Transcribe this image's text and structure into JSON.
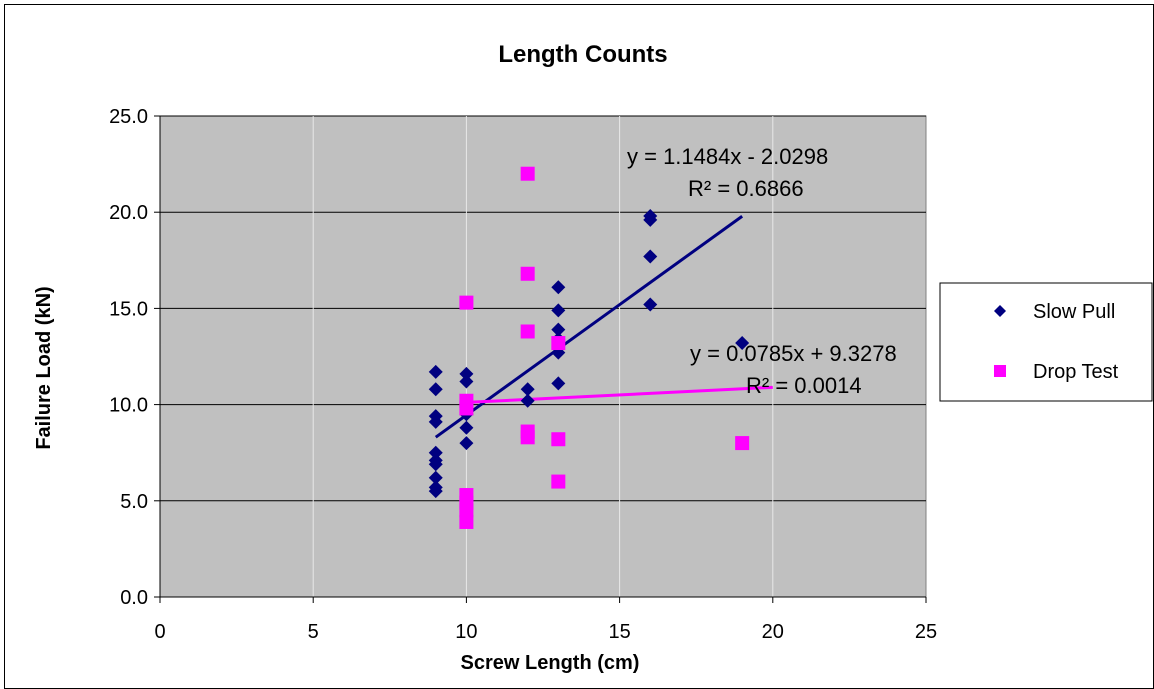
{
  "chart_data": {
    "type": "scatter",
    "title": "Length Counts",
    "xlabel": "Screw Length (cm)",
    "ylabel": "Failure Load (kN)",
    "xlim": [
      0,
      25
    ],
    "ylim": [
      0,
      25
    ],
    "x_ticks": [
      "0",
      "5",
      "10",
      "15",
      "20",
      "25"
    ],
    "y_ticks": [
      "0.0",
      "5.0",
      "10.0",
      "15.0",
      "20.0",
      "25.0"
    ],
    "grid": "horizontal and vertical major gridlines",
    "legend_position": "right",
    "plot_background": "#c0c0c0",
    "series": [
      {
        "name": "Slow Pull",
        "color": "#000080",
        "marker": "diamond",
        "points": [
          [
            9,
            11.7
          ],
          [
            9,
            10.8
          ],
          [
            9,
            9.4
          ],
          [
            9,
            9.1
          ],
          [
            9,
            7.5
          ],
          [
            9,
            7.1
          ],
          [
            9,
            6.9
          ],
          [
            9,
            6.2
          ],
          [
            9,
            5.7
          ],
          [
            9,
            5.5
          ],
          [
            10,
            11.6
          ],
          [
            10,
            11.2
          ],
          [
            10,
            10.0
          ],
          [
            10,
            9.5
          ],
          [
            10,
            8.8
          ],
          [
            10,
            8.0
          ],
          [
            12,
            10.8
          ],
          [
            12,
            10.2
          ],
          [
            13,
            16.1
          ],
          [
            13,
            14.9
          ],
          [
            13,
            13.9
          ],
          [
            13,
            13.4
          ],
          [
            13,
            12.7
          ],
          [
            13,
            11.1
          ],
          [
            16,
            19.8
          ],
          [
            16,
            19.6
          ],
          [
            16,
            17.7
          ],
          [
            16,
            15.2
          ],
          [
            19,
            13.2
          ]
        ],
        "trendline": {
          "x": [
            9,
            19
          ],
          "slope": 1.1484,
          "intercept": -2.0298,
          "equation": "y = 1.1484x - 2.0298",
          "r2": "R² = 0.6866"
        }
      },
      {
        "name": "Drop Test",
        "color": "#ff00ff",
        "marker": "square",
        "points": [
          [
            10,
            15.3
          ],
          [
            10,
            10.2
          ],
          [
            10,
            9.8
          ],
          [
            10,
            5.3
          ],
          [
            10,
            4.9
          ],
          [
            10,
            4.5
          ],
          [
            10,
            3.9
          ],
          [
            12,
            22.0
          ],
          [
            12,
            16.8
          ],
          [
            12,
            13.8
          ],
          [
            12,
            8.6
          ],
          [
            12,
            8.3
          ],
          [
            13,
            13.2
          ],
          [
            13,
            8.2
          ],
          [
            13,
            6.0
          ],
          [
            19,
            8.0
          ]
        ],
        "trendline": {
          "x": [
            10,
            20
          ],
          "slope": 0.0785,
          "intercept": 9.3278,
          "equation": "y = 0.0785x + 9.3278",
          "r2": "R² = 0.0014"
        }
      }
    ]
  }
}
